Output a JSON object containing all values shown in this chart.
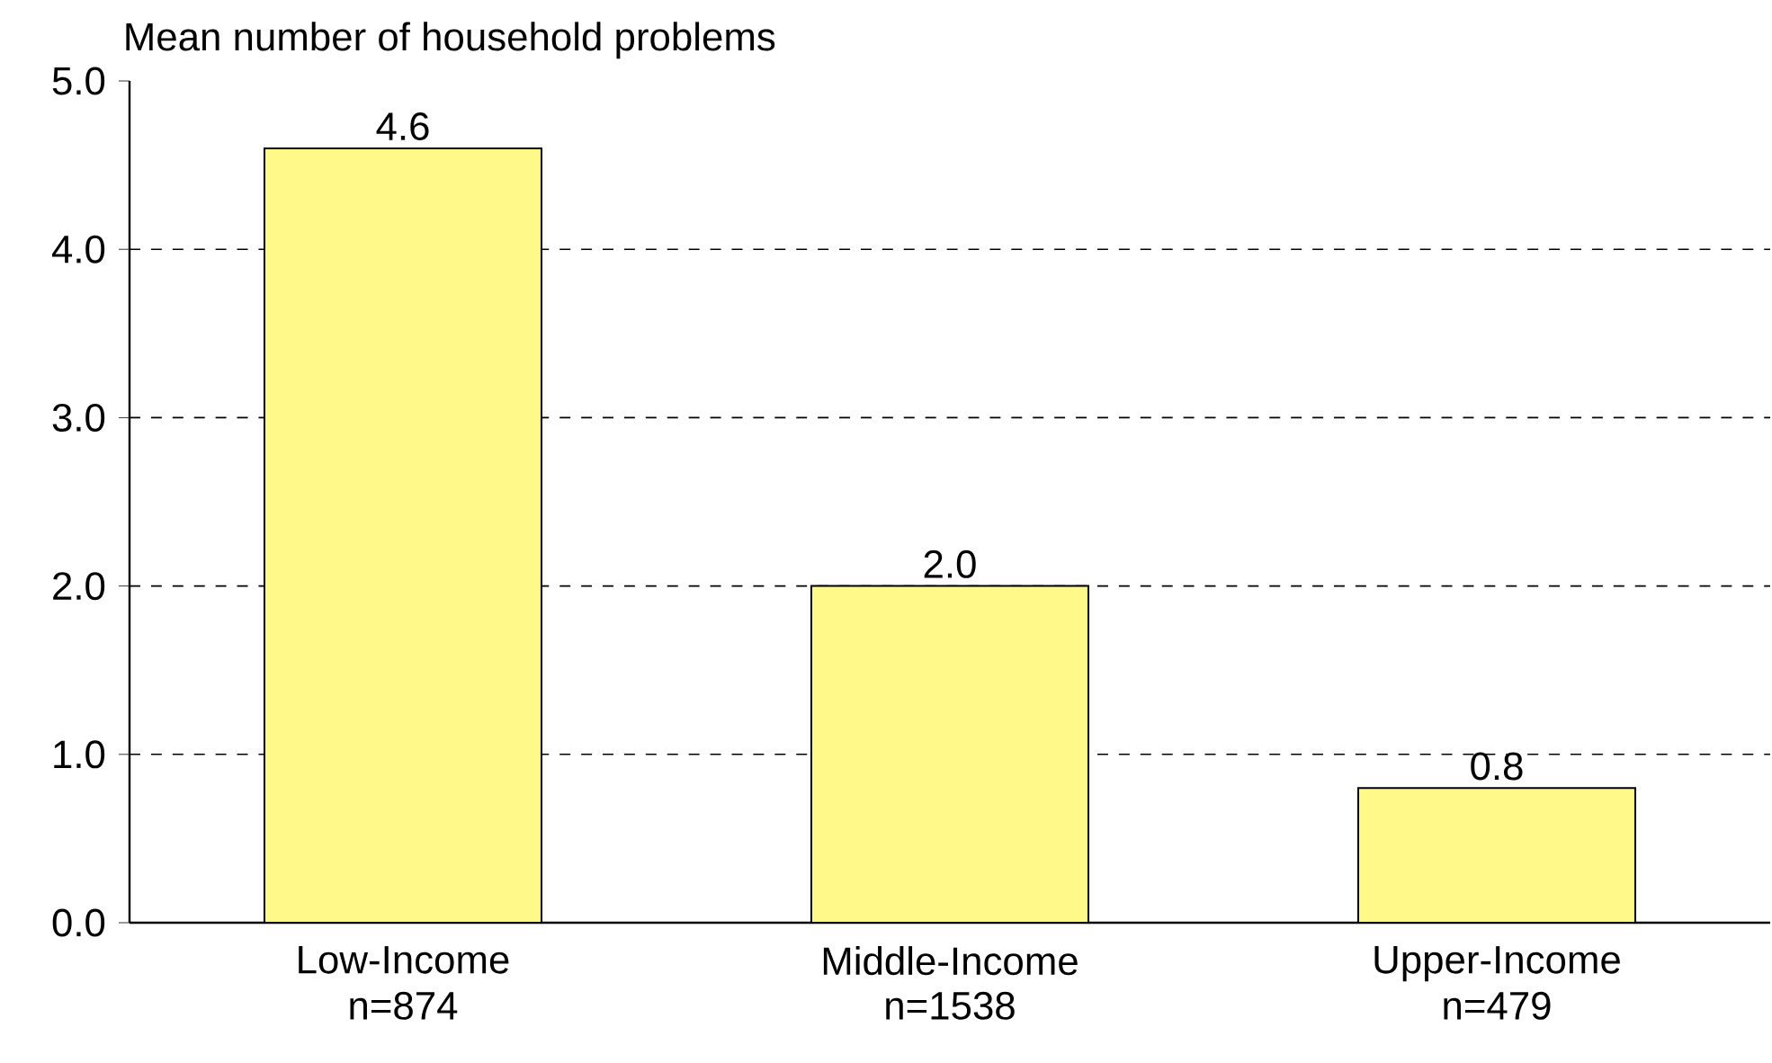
{
  "chart_data": {
    "type": "bar",
    "ylabel": "Mean number of household problems",
    "categories": [
      "Low-Income",
      "Middle-Income",
      "Upper-Income"
    ],
    "values": [
      4.6,
      2.0,
      0.8
    ],
    "value_labels": [
      "4.6",
      "2.0",
      "0.8"
    ],
    "color": "#fff98a",
    "ylim": [
      0,
      5
    ],
    "yticks": [
      {
        "value": 0,
        "label": "0.0"
      },
      {
        "value": 1,
        "label": "1.0"
      },
      {
        "value": 2,
        "label": "2.0"
      },
      {
        "value": 3,
        "label": "3.0"
      },
      {
        "value": 4,
        "label": "4.0"
      },
      {
        "value": 5,
        "label": "5.0"
      }
    ],
    "grid": "y",
    "annotations": [
      "n=874",
      "n=1538",
      "n=479"
    ]
  }
}
